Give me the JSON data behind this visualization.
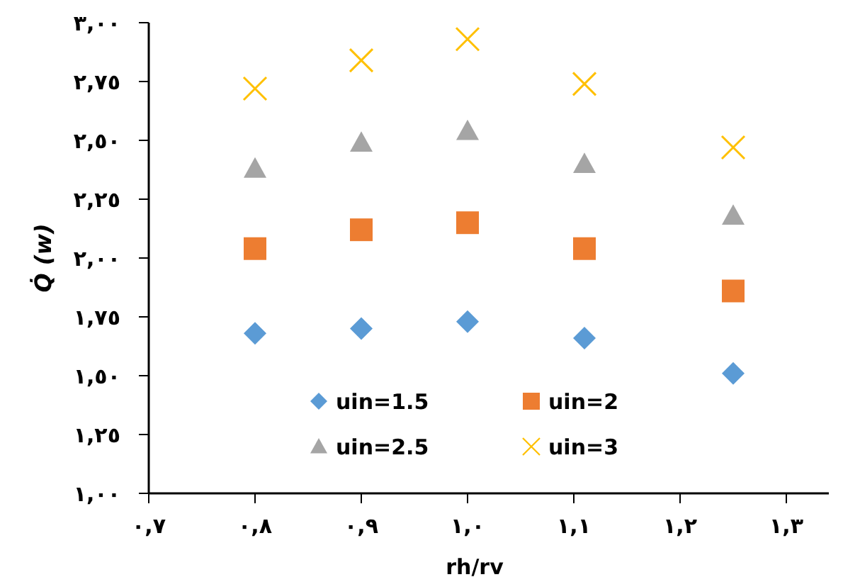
{
  "chart_data": {
    "type": "scatter",
    "xlabel": "rh/rv",
    "ylabel": "Q̇ (w)",
    "x": [
      0.8,
      0.9,
      1.0,
      1.11,
      1.25
    ],
    "series": [
      {
        "name": "uin=1.5",
        "color": "#5b9bd5",
        "marker": "diamond",
        "values": [
          1.68,
          1.7,
          1.73,
          1.66,
          1.51
        ]
      },
      {
        "name": "uin=2",
        "color": "#ed7d31",
        "marker": "square",
        "values": [
          2.04,
          2.12,
          2.15,
          2.04,
          1.86
        ]
      },
      {
        "name": "uin=2.5",
        "color": "#a5a5a5",
        "marker": "triangle",
        "values": [
          2.38,
          2.49,
          2.54,
          2.4,
          2.18
        ]
      },
      {
        "name": "uin=3",
        "color": "#ffc000",
        "marker": "cross",
        "values": [
          2.72,
          2.84,
          2.93,
          2.74,
          2.47
        ]
      }
    ],
    "xlim": [
      0.7,
      1.34
    ],
    "xticks": [
      {
        "value": 0.7,
        "label": "٠,٧"
      },
      {
        "value": 0.8,
        "label": "٠,٨"
      },
      {
        "value": 0.9,
        "label": "٠,٩"
      },
      {
        "value": 1.0,
        "label": "١,٠"
      },
      {
        "value": 1.1,
        "label": "١,١"
      },
      {
        "value": 1.2,
        "label": "١,٢"
      },
      {
        "value": 1.3,
        "label": "١,٣"
      }
    ],
    "ylim": [
      1.0,
      3.0
    ],
    "yticks": [
      {
        "value": 1.0,
        "label": "١,٠٠"
      },
      {
        "value": 1.25,
        "label": "١,٢٥"
      },
      {
        "value": 1.5,
        "label": "١,٥٠"
      },
      {
        "value": 1.75,
        "label": "١,٧٥"
      },
      {
        "value": 2.0,
        "label": "٢,٠٠"
      },
      {
        "value": 2.25,
        "label": "٢,٢٥"
      },
      {
        "value": 2.5,
        "label": "٢,٥٠"
      },
      {
        "value": 2.75,
        "label": "٢,٧٥"
      },
      {
        "value": 3.0,
        "label": "٣,٠٠"
      }
    ],
    "grid": false,
    "legend": "bottom"
  }
}
